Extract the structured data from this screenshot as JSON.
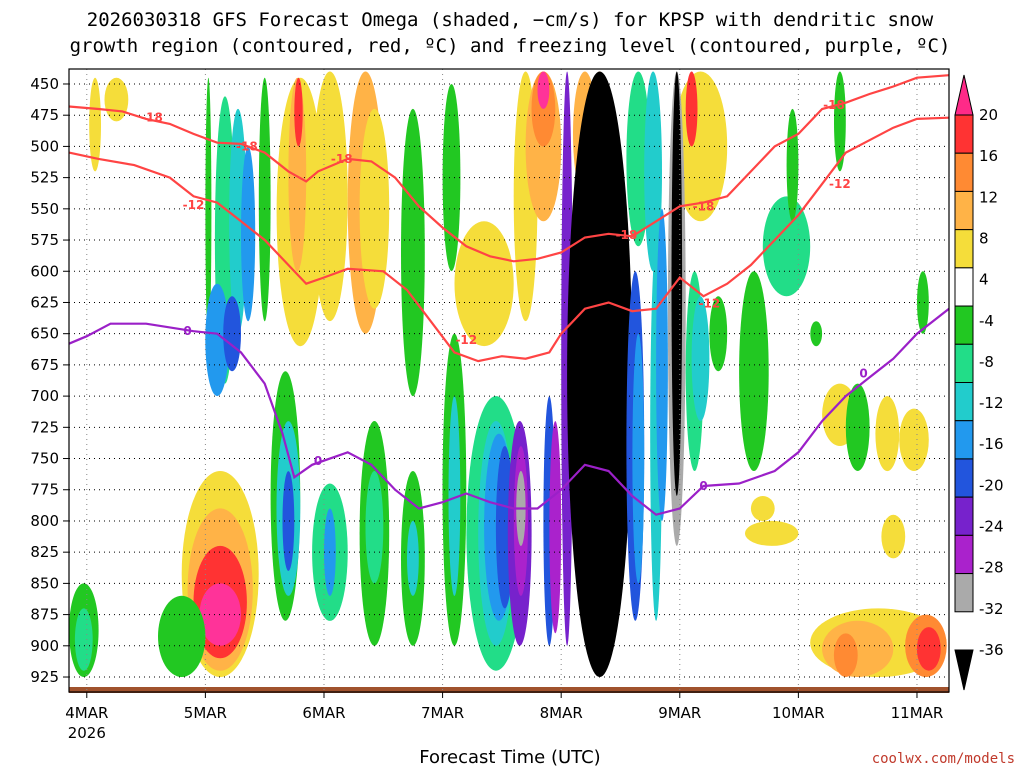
{
  "chart_data": {
    "type": "heatmap",
    "title_line1": "2026030318 GFS Forecast Omega (shaded, −cm/s) for KPSP with dendritic snow",
    "title_line2": "growth region (contoured, red, ºC) and freezing level (contoured, purple, ºC)",
    "xlabel": "Forecast Time (UTC)",
    "credit": "coolwx.com/models",
    "x_ticks": [
      {
        "label": "4MAR",
        "sub": "2026",
        "t": 0
      },
      {
        "label": "5MAR",
        "sub": "",
        "t": 1
      },
      {
        "label": "6MAR",
        "sub": "",
        "t": 2
      },
      {
        "label": "7MAR",
        "sub": "",
        "t": 3
      },
      {
        "label": "8MAR",
        "sub": "",
        "t": 4
      },
      {
        "label": "9MAR",
        "sub": "",
        "t": 5
      },
      {
        "label": "10MAR",
        "sub": "",
        "t": 6
      },
      {
        "label": "11MAR",
        "sub": "",
        "t": 7
      }
    ],
    "xlim_days": [
      -0.15,
      7.27
    ],
    "ylim_hPa": [
      937,
      438
    ],
    "y_ticks": [
      450,
      475,
      500,
      525,
      550,
      575,
      600,
      625,
      650,
      675,
      700,
      725,
      750,
      775,
      800,
      825,
      850,
      875,
      900,
      925
    ],
    "colorbar": {
      "labels": [
        "20",
        "16",
        "12",
        "8",
        "4",
        "-4",
        "-8",
        "-12",
        "-16",
        "-20",
        "-24",
        "-28",
        "-32",
        "-36"
      ],
      "colors": [
        "#ff3399",
        "#ff3333",
        "#ff8a33",
        "#ffb347",
        "#f5dd3a",
        "#ffffff",
        "#22c822",
        "#22dd88",
        "#22cccc",
        "#2299ee",
        "#2255dd",
        "#7722cc",
        "#aa22cc",
        "#aaaaaa",
        "#000000"
      ],
      "top_color": "#ff2a88",
      "bottom_color": "#000000"
    },
    "contours": [
      {
        "name": "-18",
        "color": "#ff4444",
        "points": [
          [
            -0.15,
            468
          ],
          [
            0.1,
            470
          ],
          [
            0.3,
            472
          ],
          [
            0.5,
            478
          ],
          [
            0.7,
            482
          ],
          [
            0.9,
            490
          ],
          [
            1.1,
            497
          ],
          [
            1.3,
            498
          ],
          [
            1.5,
            505
          ],
          [
            1.7,
            520
          ],
          [
            1.85,
            528
          ],
          [
            1.95,
            520
          ],
          [
            2.2,
            510
          ],
          [
            2.4,
            512
          ],
          [
            2.6,
            525
          ],
          [
            2.8,
            548
          ],
          [
            3.0,
            565
          ],
          [
            3.2,
            580
          ],
          [
            3.4,
            588
          ],
          [
            3.6,
            592
          ],
          [
            3.8,
            590
          ],
          [
            4.0,
            585
          ],
          [
            4.2,
            573
          ],
          [
            4.4,
            570
          ],
          [
            4.6,
            572
          ],
          [
            4.8,
            560
          ],
          [
            5.0,
            548
          ],
          [
            5.2,
            545
          ],
          [
            5.4,
            540
          ],
          [
            5.6,
            520
          ],
          [
            5.8,
            500
          ],
          [
            6.0,
            490
          ],
          [
            6.2,
            470
          ],
          [
            6.4,
            465
          ],
          [
            6.6,
            458
          ],
          [
            6.8,
            452
          ],
          [
            7.0,
            445
          ],
          [
            7.27,
            443
          ]
        ],
        "labels": [
          [
            0.55,
            477
          ],
          [
            1.35,
            500
          ],
          [
            2.15,
            510
          ],
          [
            4.55,
            571
          ],
          [
            5.2,
            548
          ],
          [
            6.3,
            467
          ]
        ]
      },
      {
        "name": "-12",
        "color": "#ff4444",
        "points": [
          [
            -0.15,
            505
          ],
          [
            0.1,
            510
          ],
          [
            0.4,
            515
          ],
          [
            0.7,
            525
          ],
          [
            0.9,
            540
          ],
          [
            1.1,
            545
          ],
          [
            1.3,
            560
          ],
          [
            1.5,
            575
          ],
          [
            1.7,
            595
          ],
          [
            1.85,
            610
          ],
          [
            2.0,
            605
          ],
          [
            2.2,
            598
          ],
          [
            2.5,
            600
          ],
          [
            2.7,
            615
          ],
          [
            2.9,
            640
          ],
          [
            3.1,
            665
          ],
          [
            3.3,
            672
          ],
          [
            3.5,
            668
          ],
          [
            3.7,
            670
          ],
          [
            3.9,
            665
          ],
          [
            4.0,
            650
          ],
          [
            4.2,
            630
          ],
          [
            4.4,
            625
          ],
          [
            4.6,
            632
          ],
          [
            4.8,
            630
          ],
          [
            5.0,
            605
          ],
          [
            5.2,
            620
          ],
          [
            5.4,
            610
          ],
          [
            5.6,
            595
          ],
          [
            5.8,
            575
          ],
          [
            6.0,
            555
          ],
          [
            6.2,
            530
          ],
          [
            6.4,
            505
          ],
          [
            6.6,
            495
          ],
          [
            6.8,
            485
          ],
          [
            7.0,
            478
          ],
          [
            7.27,
            477
          ]
        ],
        "labels": [
          [
            0.9,
            547
          ],
          [
            3.2,
            655
          ],
          [
            5.25,
            626
          ],
          [
            6.35,
            530
          ]
        ]
      },
      {
        "name": "0",
        "color": "#9b20c8",
        "points": [
          [
            -0.15,
            658
          ],
          [
            0.0,
            652
          ],
          [
            0.2,
            642
          ],
          [
            0.5,
            642
          ],
          [
            0.7,
            645
          ],
          [
            0.9,
            648
          ],
          [
            1.1,
            650
          ],
          [
            1.3,
            665
          ],
          [
            1.5,
            690
          ],
          [
            1.65,
            730
          ],
          [
            1.75,
            765
          ],
          [
            1.9,
            755
          ],
          [
            2.2,
            745
          ],
          [
            2.4,
            755
          ],
          [
            2.6,
            775
          ],
          [
            2.8,
            790
          ],
          [
            3.0,
            785
          ],
          [
            3.2,
            778
          ],
          [
            3.4,
            785
          ],
          [
            3.6,
            790
          ],
          [
            3.8,
            790
          ],
          [
            4.0,
            775
          ],
          [
            4.2,
            755
          ],
          [
            4.4,
            760
          ],
          [
            4.6,
            780
          ],
          [
            4.8,
            795
          ],
          [
            5.0,
            790
          ],
          [
            5.2,
            772
          ],
          [
            5.5,
            770
          ],
          [
            5.8,
            760
          ],
          [
            6.0,
            745
          ],
          [
            6.2,
            720
          ],
          [
            6.4,
            700
          ],
          [
            6.6,
            685
          ],
          [
            6.8,
            670
          ],
          [
            7.0,
            650
          ],
          [
            7.27,
            630
          ]
        ],
        "labels": [
          [
            0.85,
            648
          ],
          [
            1.95,
            752
          ],
          [
            5.2,
            772
          ],
          [
            6.55,
            682
          ]
        ]
      }
    ],
    "terrain": {
      "pressure_hPa": 937,
      "color": "#a0522d"
    }
  }
}
